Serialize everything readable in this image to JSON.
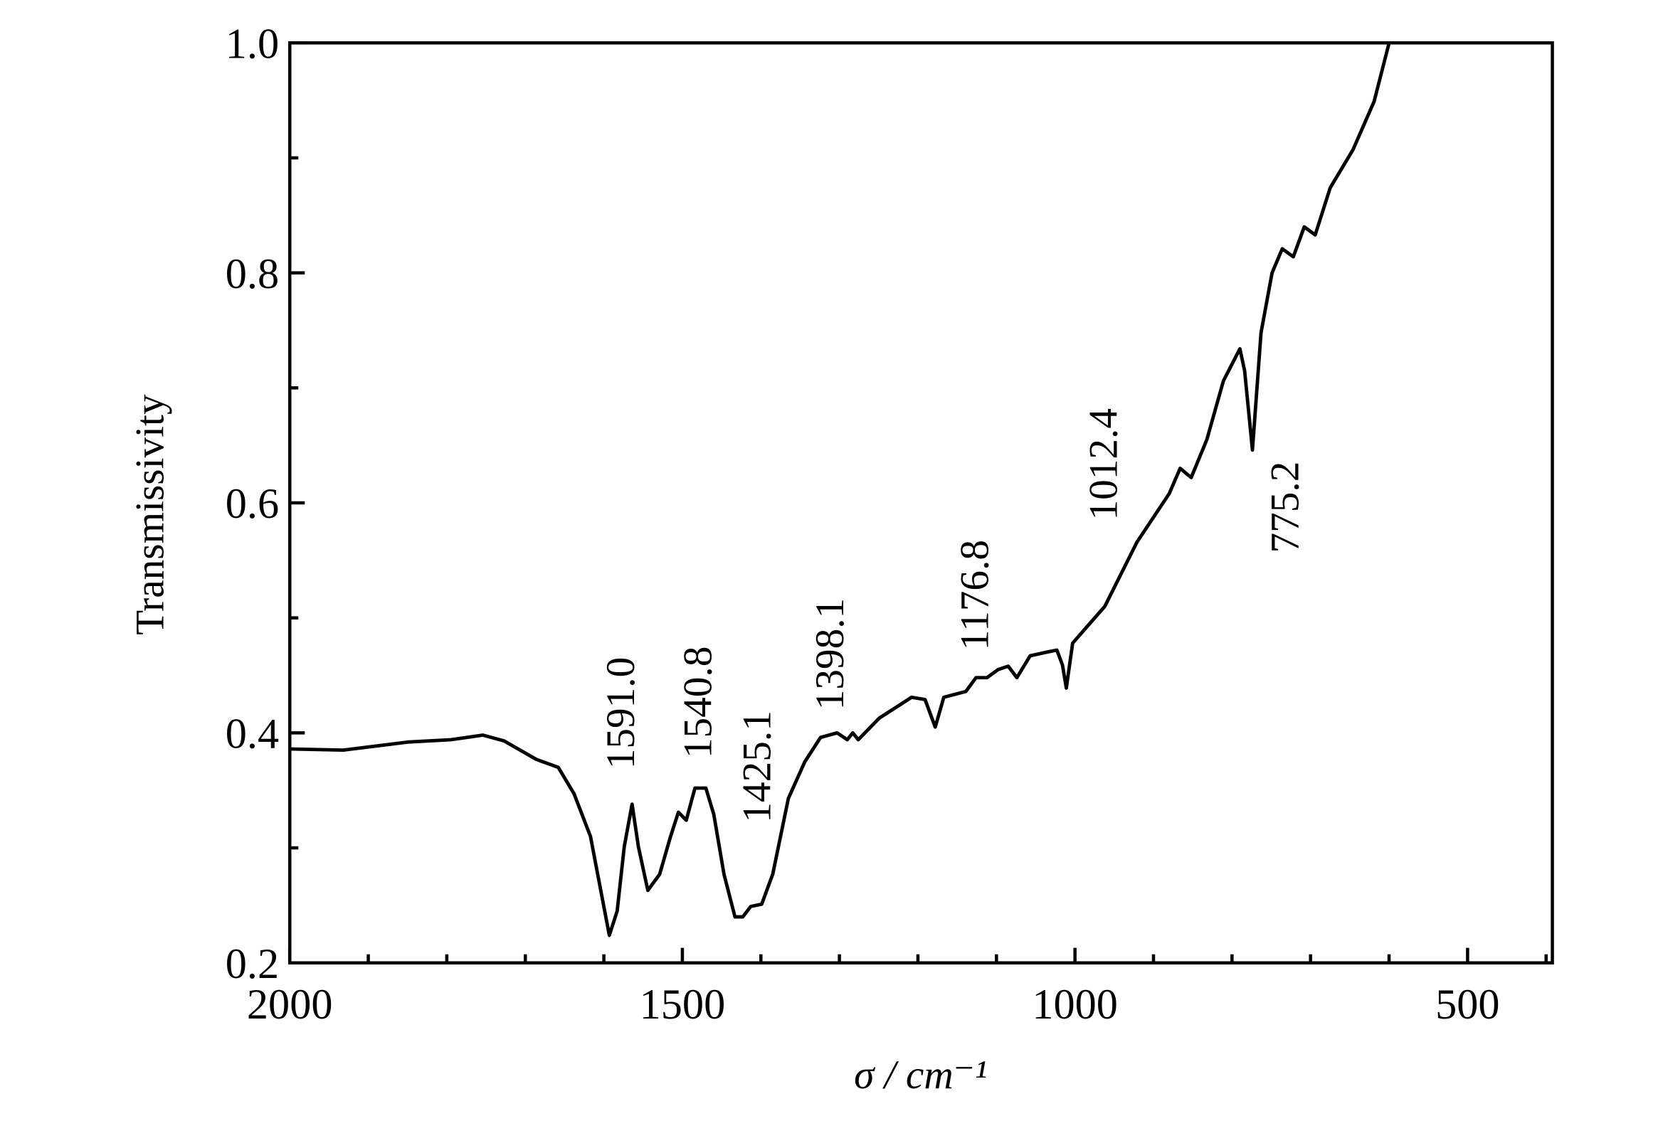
{
  "chart_data": {
    "type": "line",
    "xlabel": "σ / cm⁻¹",
    "ylabel": "Transmissivity",
    "xlim": [
      2000,
      392
    ],
    "ylim": [
      0.2,
      1.0
    ],
    "xticks": [
      2000,
      1500,
      1000,
      500
    ],
    "xminorticks": [
      1900,
      1800,
      1700,
      1600,
      1400,
      1300,
      1200,
      1100,
      900,
      800,
      700,
      600,
      400
    ],
    "yticks": [
      {
        "value": 0.2,
        "label": "0.2"
      },
      {
        "value": 0.4,
        "label": "0.4"
      },
      {
        "value": 0.6,
        "label": "0.6"
      },
      {
        "value": 0.8,
        "label": "0.8"
      },
      {
        "value": 1.0,
        "label": "1.0"
      }
    ],
    "yminorticks": [
      0.3,
      0.5,
      0.7,
      0.9
    ],
    "annotations": [
      "1591.0",
      "1540.8",
      "1425.1",
      "1398.1",
      "1176.8",
      "1012.4",
      "775.2"
    ],
    "series": [
      {
        "color": "#000000",
        "x": [
          2000,
          1932,
          1850,
          1795,
          1754,
          1727,
          1686,
          1658,
          1638,
          1617,
          1604,
          1593,
          1583,
          1574,
          1564,
          1556,
          1544,
          1529,
          1515,
          1505,
          1495,
          1484,
          1470,
          1460,
          1447,
          1433,
          1423,
          1413,
          1399,
          1385,
          1365,
          1344,
          1324,
          1303,
          1290,
          1283,
          1276,
          1249,
          1208,
          1191,
          1178,
          1167,
          1139,
          1126,
          1112,
          1098,
          1085,
          1074,
          1057,
          1037,
          1023,
          1016,
          1011,
          1003,
          962,
          921,
          880,
          866,
          852,
          832,
          811,
          790,
          784,
          774,
          763,
          749,
          736,
          722,
          708,
          694,
          675,
          646,
          619,
          600
        ],
        "values": [
          0.386,
          0.385,
          0.392,
          0.394,
          0.398,
          0.393,
          0.377,
          0.37,
          0.347,
          0.31,
          0.263,
          0.224,
          0.245,
          0.301,
          0.338,
          0.301,
          0.263,
          0.277,
          0.31,
          0.331,
          0.324,
          0.352,
          0.352,
          0.329,
          0.277,
          0.24,
          0.24,
          0.249,
          0.251,
          0.277,
          0.343,
          0.375,
          0.396,
          0.4,
          0.394,
          0.4,
          0.394,
          0.413,
          0.431,
          0.429,
          0.405,
          0.431,
          0.436,
          0.448,
          0.448,
          0.455,
          0.458,
          0.448,
          0.467,
          0.47,
          0.472,
          0.459,
          0.439,
          0.478,
          0.51,
          0.566,
          0.608,
          0.63,
          0.622,
          0.655,
          0.706,
          0.734,
          0.715,
          0.646,
          0.748,
          0.8,
          0.821,
          0.814,
          0.84,
          0.833,
          0.874,
          0.907,
          0.949,
          1.0
        ]
      }
    ]
  }
}
